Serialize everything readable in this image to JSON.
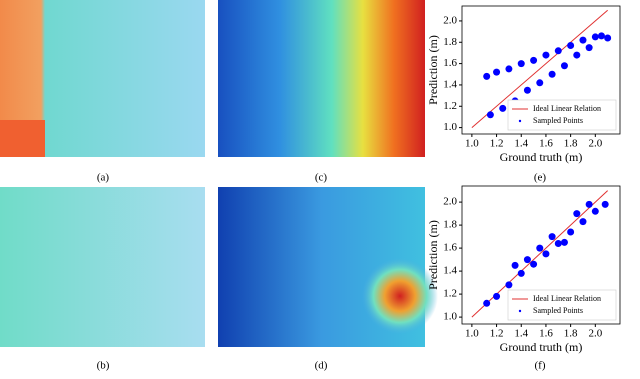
{
  "figure": {
    "captions": [
      "(a)",
      "(b)",
      "(c)",
      "(d)",
      "(e)",
      "(f)"
    ]
  },
  "chart_data": [
    {
      "type": "scatter",
      "xlabel": "Ground truth (m)",
      "ylabel": "Prediction (m)",
      "xlim": [
        0.92,
        2.2
      ],
      "ylim": [
        0.94,
        2.14
      ],
      "xticks": [
        {
          "value": 1,
          "label": "1.0"
        },
        {
          "value": 1.2,
          "label": "1.2"
        },
        {
          "value": 1.4,
          "label": "1.4"
        },
        {
          "value": 1.6,
          "label": "1.6"
        },
        {
          "value": 1.8,
          "label": "1.8"
        },
        {
          "value": 2,
          "label": "2.0"
        }
      ],
      "yticks": [
        {
          "value": 1,
          "label": "1.0"
        },
        {
          "value": 1.2,
          "label": "1.2"
        },
        {
          "value": 1.4,
          "label": "1.4"
        },
        {
          "value": 1.6,
          "label": "1.6"
        },
        {
          "value": 1.8,
          "label": "1.8"
        },
        {
          "value": 2,
          "label": "2.0"
        }
      ],
      "legend": "lower right",
      "series": [
        {
          "name": "Ideal Linear Relation",
          "type": "line",
          "color": "#e03030",
          "x": [
            1.0,
            2.1
          ],
          "values": [
            1.0,
            2.1
          ]
        },
        {
          "name": "Sampled Points",
          "type": "points",
          "color": "#0000ff",
          "x": [
            1.12,
            1.2,
            1.3,
            1.4,
            1.5,
            1.6,
            1.7,
            1.8,
            1.9,
            2.0,
            2.05,
            1.15,
            1.25,
            1.35,
            1.45,
            1.55,
            1.65,
            1.75,
            1.85,
            1.95,
            2.1
          ],
          "values": [
            1.48,
            1.52,
            1.55,
            1.6,
            1.63,
            1.68,
            1.72,
            1.77,
            1.82,
            1.85,
            1.86,
            1.12,
            1.18,
            1.25,
            1.35,
            1.42,
            1.5,
            1.58,
            1.68,
            1.75,
            1.84
          ]
        }
      ]
    },
    {
      "type": "scatter",
      "xlabel": "Ground truth (m)",
      "ylabel": "Prediction (m)",
      "xlim": [
        0.92,
        2.2
      ],
      "ylim": [
        0.94,
        2.14
      ],
      "xticks": [
        {
          "value": 1,
          "label": "1.0"
        },
        {
          "value": 1.2,
          "label": "1.2"
        },
        {
          "value": 1.4,
          "label": "1.4"
        },
        {
          "value": 1.6,
          "label": "1.6"
        },
        {
          "value": 1.8,
          "label": "1.8"
        },
        {
          "value": 2,
          "label": "2.0"
        }
      ],
      "yticks": [
        {
          "value": 1,
          "label": "1.0"
        },
        {
          "value": 1.2,
          "label": "1.2"
        },
        {
          "value": 1.4,
          "label": "1.4"
        },
        {
          "value": 1.6,
          "label": "1.6"
        },
        {
          "value": 1.8,
          "label": "1.8"
        },
        {
          "value": 2,
          "label": "2.0"
        }
      ],
      "legend": "lower right",
      "series": [
        {
          "name": "Ideal Linear Relation",
          "type": "line",
          "color": "#e03030",
          "x": [
            1.0,
            2.1
          ],
          "values": [
            1.0,
            2.1
          ]
        },
        {
          "name": "Sampled Points",
          "type": "points",
          "color": "#0000ff",
          "x": [
            1.12,
            1.2,
            1.3,
            1.4,
            1.5,
            1.6,
            1.7,
            1.8,
            1.9,
            2.0,
            2.08,
            1.45,
            1.55,
            1.65,
            1.75,
            1.85,
            1.95,
            1.35
          ],
          "values": [
            1.12,
            1.18,
            1.28,
            1.38,
            1.46,
            1.55,
            1.64,
            1.74,
            1.83,
            1.92,
            1.98,
            1.5,
            1.6,
            1.7,
            1.65,
            1.9,
            1.98,
            1.45
          ]
        }
      ]
    }
  ]
}
